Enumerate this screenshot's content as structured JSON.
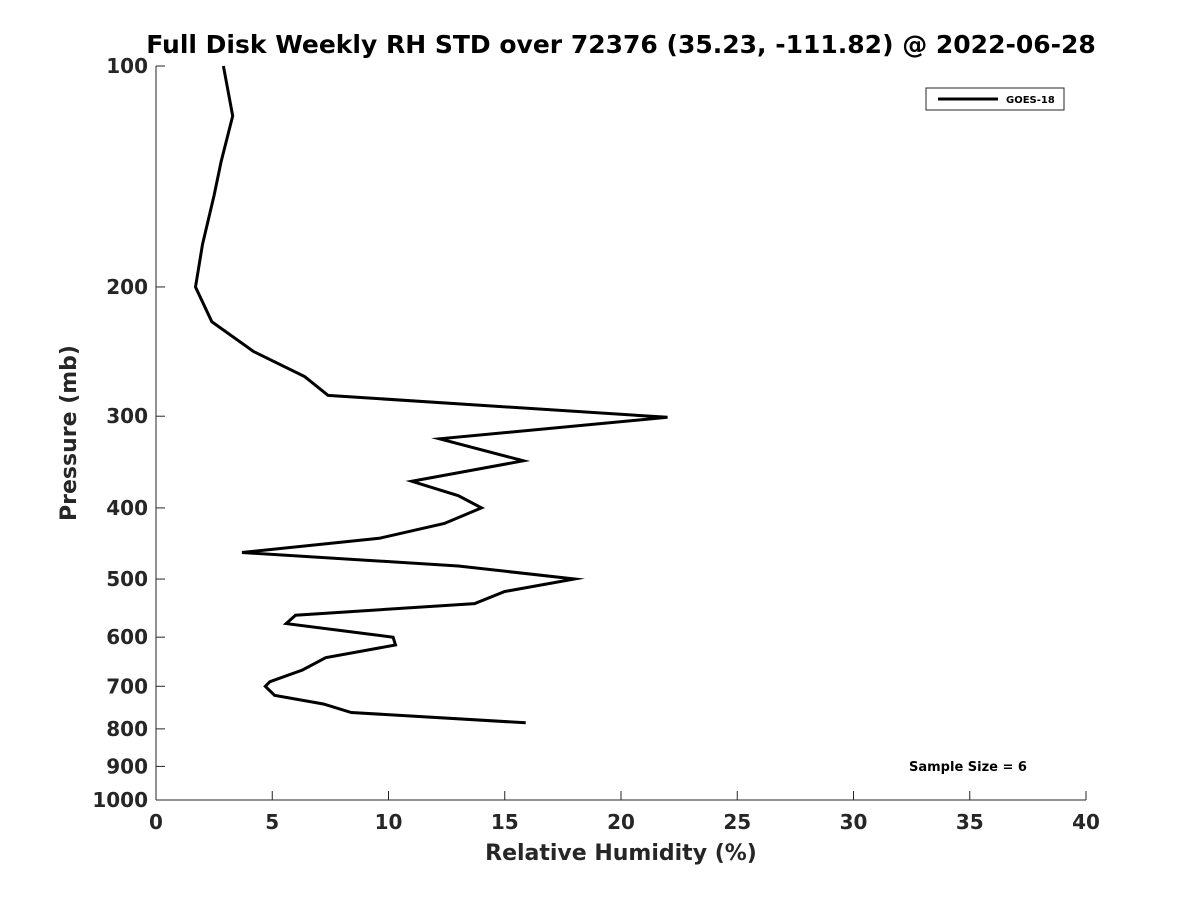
{
  "chart_data": {
    "type": "line",
    "title": "Full Disk Weekly RH STD over 72376 (35.23, -111.82) @ 2022-06-28",
    "xlabel": "Relative Humidity (%)",
    "ylabel": "Pressure (mb)",
    "xlim": [
      0,
      40
    ],
    "ylim": [
      100,
      1000
    ],
    "y_scale": "log",
    "y_reversed": true,
    "grid": false,
    "legend_position": "top-right",
    "x_ticks": [
      0,
      5,
      10,
      15,
      20,
      25,
      30,
      35,
      40
    ],
    "x_tick_labels": [
      "0",
      "5",
      "10",
      "15",
      "20",
      "25",
      "30",
      "35",
      "40"
    ],
    "y_ticks": [
      100,
      200,
      300,
      400,
      500,
      600,
      700,
      800,
      900,
      1000
    ],
    "y_tick_labels": [
      "100",
      "200",
      "300",
      "400",
      "500",
      "600",
      "700",
      "800",
      "900",
      "1000"
    ],
    "series": [
      {
        "name": "GOES-18",
        "color": "#000000",
        "x": [
          2.9,
          3.3,
          2.8,
          2.5,
          2.0,
          1.7,
          2.4,
          4.2,
          6.4,
          7.4,
          22.0,
          12.2,
          15.8,
          11.0,
          13.0,
          14.0,
          12.4,
          9.6,
          3.7,
          13.0,
          18.0,
          15.0,
          13.7,
          6.0,
          5.6,
          10.2,
          10.3,
          7.3,
          6.3,
          4.9,
          4.7,
          5.1,
          7.2,
          8.4,
          15.9
        ],
        "y": [
          100,
          117,
          135,
          150,
          175,
          200,
          223,
          245,
          265,
          281,
          301,
          322,
          345,
          368,
          385,
          400,
          420,
          440,
          460,
          480,
          500,
          520,
          540,
          560,
          575,
          600,
          615,
          640,
          665,
          690,
          700,
          720,
          740,
          760,
          785
        ]
      }
    ]
  },
  "legend": {
    "label": "GOES-18"
  },
  "annotation": {
    "sample_size": "Sample Size = 6"
  }
}
